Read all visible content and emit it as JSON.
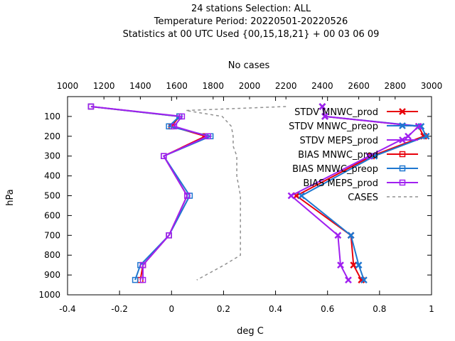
{
  "chart_data": {
    "type": "line",
    "title_lines": [
      "24 stations Selection: ALL",
      "Temperature  Period: 20220501-20220526",
      "Statistics at 00 UTC  Used {00,15,18,21} + 00 03 06 09"
    ],
    "xlabel": "deg C",
    "ylabel": "hPa",
    "x2label": "No cases",
    "xlim": [
      -0.4,
      1.0
    ],
    "ylim": [
      1000,
      0
    ],
    "x2lim": [
      1000,
      3000
    ],
    "xticks": [
      "-0.4",
      "-0.2",
      "0",
      "0.2",
      "0.4",
      "0.6",
      "0.8",
      "1"
    ],
    "yticks": [
      "100",
      "200",
      "300",
      "400",
      "500",
      "600",
      "700",
      "800",
      "900",
      "1000"
    ],
    "x2ticks": [
      "1000",
      "1200",
      "1400",
      "1600",
      "1800",
      "2000",
      "2200",
      "2400",
      "2600",
      "2800",
      "3000"
    ],
    "legend_position": "top-right",
    "series": [
      {
        "name": "STDV MNWC_prod",
        "color": "#e8000b",
        "marker": "x",
        "dash": false,
        "points": [
          [
            0.58,
            50
          ],
          [
            0.59,
            100
          ],
          [
            0.95,
            150
          ],
          [
            0.97,
            200
          ],
          [
            0.77,
            300
          ],
          [
            0.48,
            500
          ],
          [
            0.69,
            700
          ],
          [
            0.7,
            850
          ],
          [
            0.73,
            925
          ]
        ]
      },
      {
        "name": "STDV MNWC_preop",
        "color": "#1f77d0",
        "marker": "x",
        "dash": false,
        "points": [
          [
            0.58,
            50
          ],
          [
            0.59,
            100
          ],
          [
            0.96,
            150
          ],
          [
            0.98,
            200
          ],
          [
            0.78,
            300
          ],
          [
            0.5,
            500
          ],
          [
            0.69,
            700
          ],
          [
            0.72,
            850
          ],
          [
            0.74,
            925
          ]
        ]
      },
      {
        "name": "STDV MEPS_prod",
        "color": "#a020f0",
        "marker": "x",
        "dash": false,
        "points": [
          [
            0.58,
            50
          ],
          [
            0.59,
            100
          ],
          [
            0.95,
            150
          ],
          [
            0.91,
            200
          ],
          [
            0.76,
            300
          ],
          [
            0.46,
            500
          ],
          [
            0.64,
            700
          ],
          [
            0.65,
            850
          ],
          [
            0.68,
            925
          ]
        ]
      },
      {
        "name": "BIAS MNWC_prod",
        "color": "#e8000b",
        "marker": "square",
        "dash": false,
        "points": [
          [
            -0.31,
            50
          ],
          [
            0.03,
            100
          ],
          [
            0.0,
            150
          ],
          [
            0.13,
            200
          ],
          [
            -0.03,
            300
          ],
          [
            0.06,
            500
          ],
          [
            -0.01,
            700
          ],
          [
            -0.11,
            850
          ],
          [
            -0.12,
            925
          ]
        ]
      },
      {
        "name": "BIAS MNWC_preop",
        "color": "#1f77d0",
        "marker": "square",
        "dash": false,
        "points": [
          [
            -0.31,
            50
          ],
          [
            0.03,
            100
          ],
          [
            -0.01,
            150
          ],
          [
            0.15,
            200
          ],
          [
            -0.03,
            300
          ],
          [
            0.07,
            500
          ],
          [
            -0.01,
            700
          ],
          [
            -0.12,
            850
          ],
          [
            -0.14,
            925
          ]
        ]
      },
      {
        "name": "BIAS MEPS_prod",
        "color": "#a020f0",
        "marker": "square",
        "dash": false,
        "points": [
          [
            -0.31,
            50
          ],
          [
            0.04,
            100
          ],
          [
            0.01,
            150
          ],
          [
            0.14,
            200
          ],
          [
            -0.03,
            300
          ],
          [
            0.06,
            500
          ],
          [
            -0.01,
            700
          ],
          [
            -0.11,
            850
          ],
          [
            -0.11,
            925
          ]
        ]
      },
      {
        "name": "CASES",
        "color": "#909090",
        "marker": "none",
        "dash": true,
        "axis": "x2",
        "points": [
          [
            2200,
            50
          ],
          [
            1650,
            70
          ],
          [
            1850,
            100
          ],
          [
            1900,
            150
          ],
          [
            1910,
            200
          ],
          [
            1910,
            250
          ],
          [
            1930,
            300
          ],
          [
            1930,
            400
          ],
          [
            1950,
            500
          ],
          [
            1950,
            600
          ],
          [
            1950,
            700
          ],
          [
            1950,
            800
          ],
          [
            1860,
            850
          ],
          [
            1710,
            925
          ]
        ]
      }
    ]
  }
}
